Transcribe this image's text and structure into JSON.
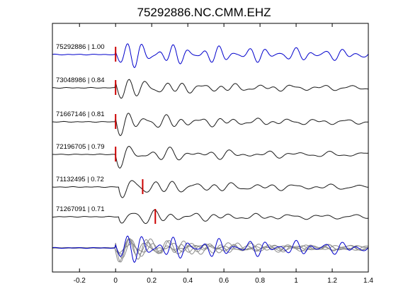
{
  "chart_data": {
    "type": "line",
    "title": "75292886.NC.CMM.EHZ",
    "xlabel": "",
    "ylabel": "",
    "xlim": [
      -0.35,
      1.4
    ],
    "x_ticks": [
      -0.2,
      0,
      0.2,
      0.4,
      0.6,
      0.8,
      1,
      1.2,
      1.4
    ],
    "x_tick_labels": [
      "-0.2",
      "0",
      "0.2",
      "0.4",
      "0.6",
      "0.8",
      "1",
      "1.2",
      "1.4"
    ],
    "grid": false,
    "colors": {
      "reference": "#0000cc",
      "trace": "#1a1a1a",
      "overlay": "#8c8c8c",
      "pick": "#cc0000",
      "axes": "#000000"
    },
    "series": [
      {
        "label": "75292886 | 1.00",
        "color": "#0000cc",
        "pick_time": 0.0,
        "onset": 0.0,
        "period": 0.085,
        "scale": 1.0,
        "decay": 0.6
      },
      {
        "label": "73048986 | 0.84",
        "color": "#1a1a1a",
        "pick_time": 0.0,
        "onset": 0.0,
        "period": 0.1,
        "scale": 0.9,
        "decay": 2.2
      },
      {
        "label": "71667146 | 0.81",
        "color": "#1a1a1a",
        "pick_time": 0.0,
        "onset": 0.0,
        "period": 0.1,
        "scale": 0.9,
        "decay": 2.2
      },
      {
        "label": "72196705 | 0.79",
        "color": "#1a1a1a",
        "pick_time": 0.0,
        "onset": 0.0,
        "period": 0.11,
        "scale": 0.85,
        "decay": 1.8
      },
      {
        "label": "71132495 | 0.72",
        "color": "#1a1a1a",
        "pick_time": 0.15,
        "onset": 0.02,
        "period": 0.11,
        "scale": 0.8,
        "decay": 1.6
      },
      {
        "label": "71267091 | 0.71",
        "color": "#1a1a1a",
        "pick_time": 0.22,
        "onset": 0.02,
        "period": 0.11,
        "scale": 0.8,
        "decay": 2.6
      }
    ],
    "overlay": {
      "description_hidden": true,
      "count": 6
    }
  }
}
